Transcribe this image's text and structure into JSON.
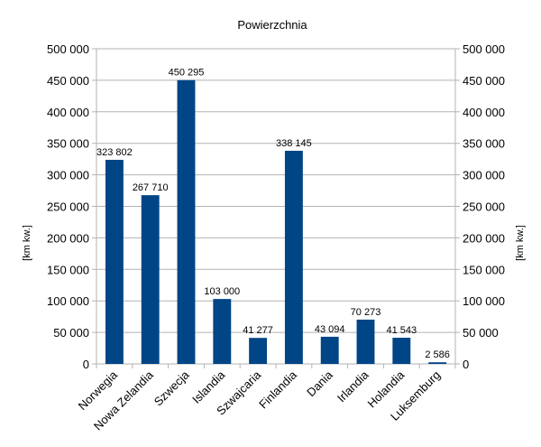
{
  "chart_data": {
    "type": "bar",
    "title": "Powierzchnia",
    "categories": [
      "Norwegia",
      "Nowa Zelandia",
      "Szwecja",
      "Islandia",
      "Szwajcaria",
      "Finlandia",
      "Dania",
      "Irlandia",
      "Holandia",
      "Luksemburg"
    ],
    "values": [
      323802,
      267710,
      450295,
      103000,
      41277,
      338145,
      43094,
      70273,
      41543,
      2586
    ],
    "value_labels": [
      "323 802",
      "267 710",
      "450 295",
      "103 000",
      "41 277",
      "338 145",
      "43 094",
      "70 273",
      "41 543",
      "2 586"
    ],
    "ylabel_left": "[km kw.]",
    "ylabel_right": "[km kw.]",
    "ylim": [
      0,
      500000
    ],
    "y_ticks": [
      0,
      50000,
      100000,
      150000,
      200000,
      250000,
      300000,
      350000,
      400000,
      450000,
      500000
    ],
    "y_tick_labels": [
      "0",
      "50 000",
      "100 000",
      "150 000",
      "200 000",
      "250 000",
      "300 000",
      "350 000",
      "400 000",
      "450 000",
      "500 000"
    ],
    "bar_color": "#004586",
    "grid_color": "#b3b3b3",
    "grid": true,
    "legend": "none"
  }
}
